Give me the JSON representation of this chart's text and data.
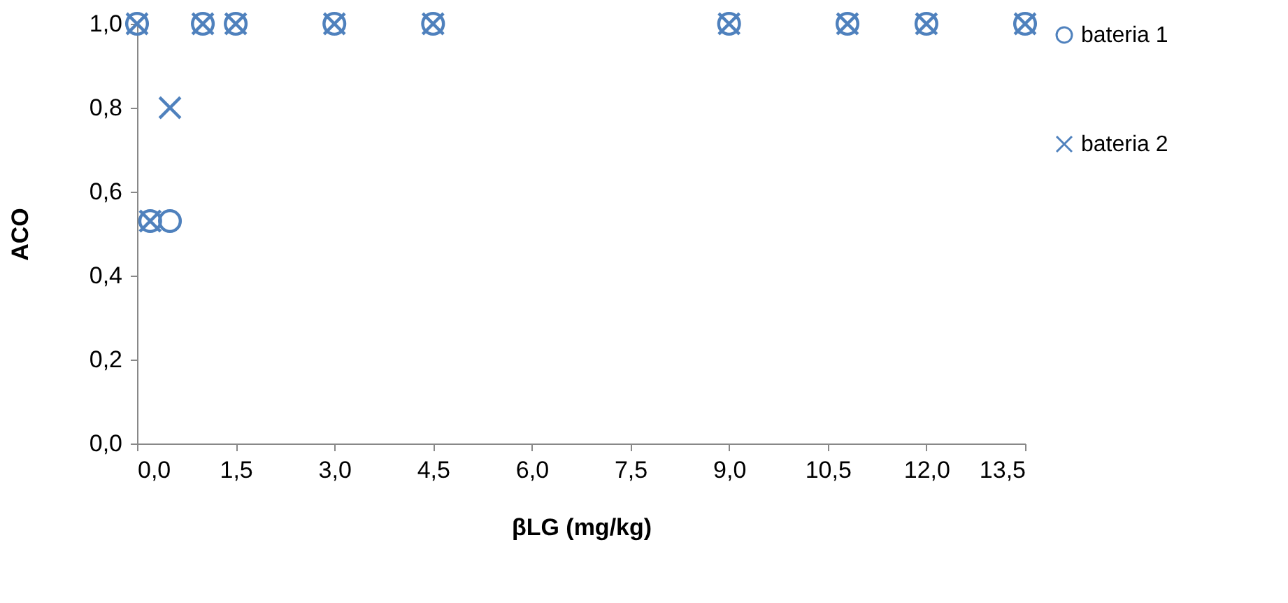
{
  "chart_data": {
    "type": "scatter",
    "xlabel": "βLG (mg/kg)",
    "ylabel": "ACO",
    "xlim": [
      0,
      13.5
    ],
    "xticks": [
      {
        "value": 0,
        "label": "0,0"
      },
      {
        "value": 1.5,
        "label": "1,5"
      },
      {
        "value": 3,
        "label": "3,0"
      },
      {
        "value": 4.5,
        "label": "4,5"
      },
      {
        "value": 6,
        "label": "6,0"
      },
      {
        "value": 7.5,
        "label": "7,5"
      },
      {
        "value": 9,
        "label": "9,0"
      },
      {
        "value": 10.5,
        "label": "10,5"
      },
      {
        "value": 12,
        "label": "12,0"
      },
      {
        "value": 13.5,
        "label": "13,5"
      }
    ],
    "ylim": [
      0,
      1
    ],
    "yticks": [
      {
        "value": 0,
        "label": "0,0"
      },
      {
        "value": 0.2,
        "label": "0,2"
      },
      {
        "value": 0.4,
        "label": "0,4"
      },
      {
        "value": 0.6,
        "label": "0,6"
      },
      {
        "value": 0.8,
        "label": "0,8"
      },
      {
        "value": 1,
        "label": "1,0"
      }
    ],
    "grid": false,
    "legend": "right",
    "series": [
      {
        "name": "bateria 1",
        "color": "#4f81bd",
        "marker": "circle",
        "x": [
          0,
          0.2,
          0.5,
          1,
          1.5,
          3,
          4.5,
          9,
          10.8,
          12,
          13.5
        ],
        "values": [
          1,
          0.53,
          0.53,
          1,
          1,
          1,
          1,
          1,
          1,
          1,
          1
        ]
      },
      {
        "name": "bateria 2",
        "color": "#4f81bd",
        "marker": "cross",
        "x": [
          0,
          0.2,
          0.5,
          1,
          1.5,
          3,
          4.5,
          9,
          10.8,
          12,
          13.5
        ],
        "values": [
          1,
          0.53,
          0.8,
          1,
          1,
          1,
          1,
          1,
          1,
          1,
          1
        ]
      }
    ]
  }
}
